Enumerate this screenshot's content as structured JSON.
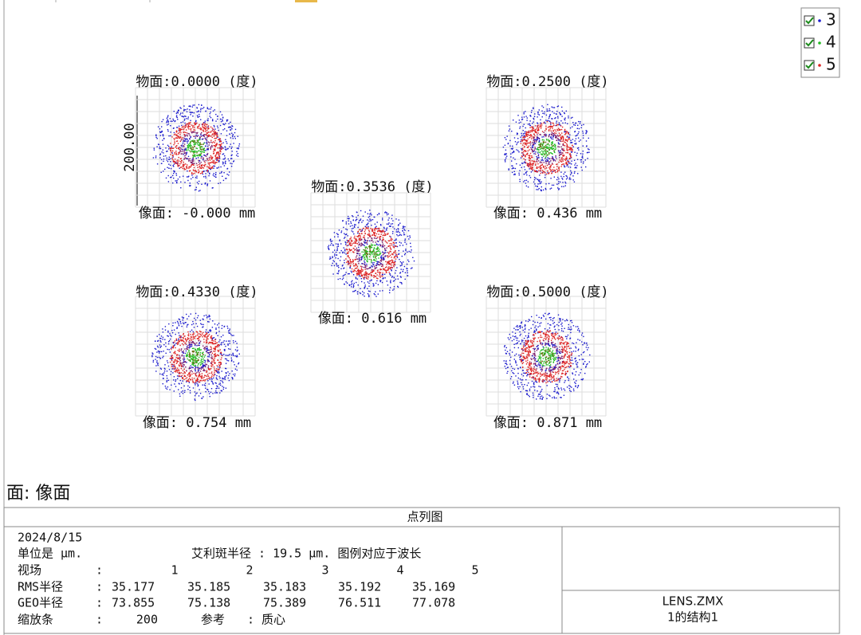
{
  "legend": [
    {
      "label": "3",
      "color": "#1a1acc"
    },
    {
      "label": "4",
      "color": "#22bb22"
    },
    {
      "label": "5",
      "color": "#dd2222"
    }
  ],
  "fields": [
    {
      "object": "物面:0.0000 (度)",
      "image": "像面: -0.000 mm"
    },
    {
      "object": "物面:0.2500 (度)",
      "image": "像面: 0.436 mm"
    },
    {
      "object": "物面:0.3536 (度)",
      "image": "像面: 0.616 mm"
    },
    {
      "object": "物面:0.4330 (度)",
      "image": "像面: 0.754 mm"
    },
    {
      "object": "物面:0.5000 (度)",
      "image": "像面: 0.871 mm"
    }
  ],
  "scale_bar_label": "200.00",
  "surface": "面: 像面",
  "table": {
    "title": "点列图",
    "date": "2024/8/15",
    "units": "单位是 μm.",
    "airy": "艾利斑半径 : 19.5 μm. 图例对应于波长",
    "field_row": {
      "label": "视场",
      "sep": ":",
      "values": [
        "1",
        "2",
        "3",
        "4",
        "5"
      ]
    },
    "rms_row": {
      "label": "RMS半径",
      "sep": ":",
      "values": [
        "35.177",
        "35.185",
        "35.183",
        "35.192",
        "35.169"
      ]
    },
    "geo_row": {
      "label": "GEO半径",
      "sep": ":",
      "values": [
        "73.855",
        "75.138",
        "75.389",
        "76.511",
        "77.078"
      ]
    },
    "scale_row": {
      "label": "缩放条",
      "sep": ":",
      "value": "200",
      "ref_label": "参考",
      "ref_sep": ":",
      "ref": "质心"
    },
    "file": "LENS.ZMX",
    "config": "1的结构1"
  }
}
